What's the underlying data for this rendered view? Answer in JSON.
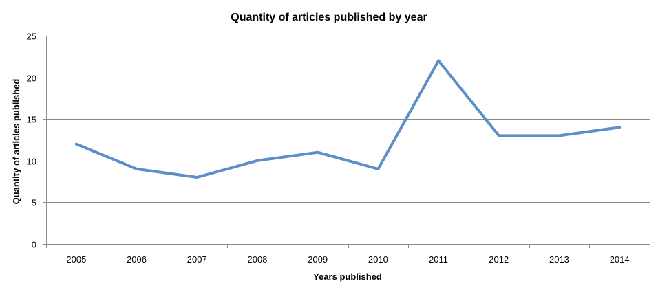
{
  "chart_data": {
    "type": "line",
    "title": "Quantity of articles published by year",
    "xlabel": "Years published",
    "ylabel": "Quantity of articles published",
    "categories": [
      "2005",
      "2006",
      "2007",
      "2008",
      "2009",
      "2010",
      "2011",
      "2012",
      "2013",
      "2014"
    ],
    "series": [
      {
        "values": [
          12,
          9,
          8,
          10,
          11,
          9,
          22,
          13,
          13,
          14
        ],
        "color": "#5b8fc6"
      }
    ],
    "ylim": [
      0,
      25
    ],
    "yticks": [
      "0",
      "5",
      "10",
      "15",
      "20",
      "25"
    ],
    "grid": true,
    "legend": "none"
  }
}
